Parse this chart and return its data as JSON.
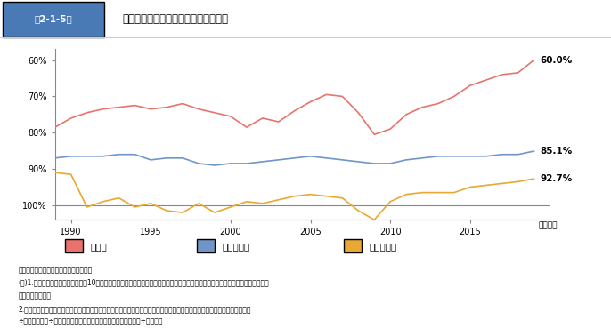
{
  "title": "第2-1-5図　　損益分岐点比率の推移（企業規模別）",
  "ylabel_unit": "%",
  "xlabel": "（年度）",
  "yticks": [
    60,
    70,
    80,
    90,
    100
  ],
  "ylim": [
    57,
    104
  ],
  "xlim": [
    1989,
    2020
  ],
  "hline_y": 100,
  "years_large": [
    1989,
    1990,
    1991,
    1992,
    1993,
    1994,
    1995,
    1996,
    1997,
    1998,
    1999,
    2000,
    2001,
    2002,
    2003,
    2004,
    2005,
    2006,
    2007,
    2008,
    2009,
    2010,
    2011,
    2012,
    2013,
    2014,
    2015,
    2016,
    2017,
    2018,
    2019
  ],
  "large": [
    78.5,
    76.0,
    74.5,
    73.5,
    73.0,
    72.5,
    73.5,
    73.0,
    72.0,
    73.5,
    74.5,
    75.5,
    78.5,
    76.0,
    77.0,
    74.0,
    71.5,
    69.5,
    70.0,
    74.5,
    80.5,
    79.0,
    75.0,
    73.0,
    72.0,
    70.0,
    67.0,
    65.5,
    64.0,
    63.5,
    60.0
  ],
  "years_mid": [
    1989,
    1990,
    1991,
    1992,
    1993,
    1994,
    1995,
    1996,
    1997,
    1998,
    1999,
    2000,
    2001,
    2002,
    2003,
    2004,
    2005,
    2006,
    2007,
    2008,
    2009,
    2010,
    2011,
    2012,
    2013,
    2014,
    2015,
    2016,
    2017,
    2018,
    2019
  ],
  "mid": [
    87.0,
    86.5,
    86.5,
    86.5,
    86.0,
    86.0,
    87.5,
    87.0,
    87.0,
    88.5,
    89.0,
    88.5,
    88.5,
    88.0,
    87.5,
    87.0,
    86.5,
    87.0,
    87.5,
    88.0,
    88.5,
    88.5,
    87.5,
    87.0,
    86.5,
    86.5,
    86.5,
    86.5,
    86.0,
    86.0,
    85.1
  ],
  "years_small": [
    1989,
    1990,
    1991,
    1992,
    1993,
    1994,
    1995,
    1996,
    1997,
    1998,
    1999,
    2000,
    2001,
    2002,
    2003,
    2004,
    2005,
    2006,
    2007,
    2008,
    2009,
    2010,
    2011,
    2012,
    2013,
    2014,
    2015,
    2016,
    2017,
    2018,
    2019
  ],
  "small": [
    91.0,
    91.5,
    100.5,
    99.0,
    98.0,
    100.5,
    99.5,
    101.5,
    102.0,
    99.5,
    102.0,
    100.5,
    99.0,
    99.5,
    98.5,
    97.5,
    97.0,
    97.5,
    98.0,
    101.5,
    104.0,
    99.0,
    97.0,
    96.5,
    96.5,
    96.5,
    95.0,
    94.5,
    94.0,
    93.5,
    92.7
  ],
  "color_large": "#e8736c",
  "color_mid": "#7096c8",
  "color_small": "#e8a832",
  "label_large": "大企業",
  "label_mid": "中規模企業",
  "label_small": "小規模企業",
  "end_label_large": "60.0%",
  "end_label_mid": "85.1%",
  "end_label_small": "92.7%",
  "note1": "資料：財務省「法人企業統計調査年報」",
  "note2": "(注)1.ここでいう大企業とは資本金10億円以上、中規模企業とは資本金１千万円以上１億円未満、小規模企業とは資本金１千万円未",
  "note3": "満の企業とする。",
  "note4": "2.固定費＝人件費＋減価償却費＋営業外費用－営業外収益、変動費＝売上高－経常利益－固定費、損益分岐点売上高＝固定費",
  "note5": "÷（１－変動費÷売上高）、損益分岐点比率＝損益分岐点売上高÷売上高。",
  "header_bg": "#4a7ab5",
  "header_fig_label": "第2-1-5図",
  "header_title": "損益分岐点比率の推移（企業規模別）"
}
